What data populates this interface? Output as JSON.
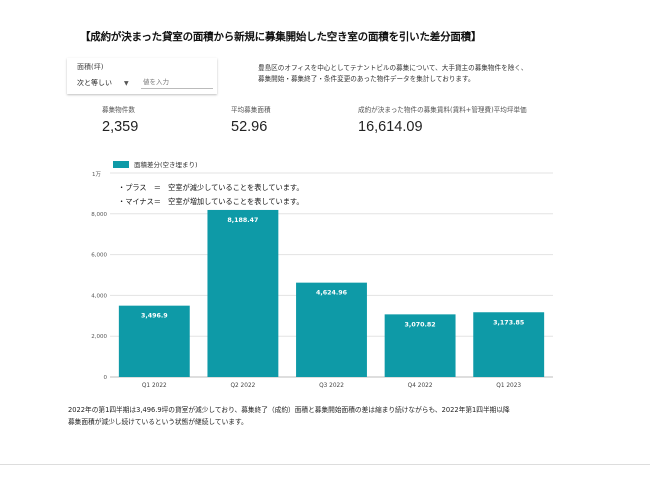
{
  "title": "【成約が決まった貸室の面積から新規に募集開始した空き室の面積を引いた差分面積】",
  "filter": {
    "label": "面積(坪)",
    "operator": "次と等しい",
    "placeholder": "値を入力"
  },
  "description": [
    "豊島区のオフィスを中心としてテナントビルの募集について、大手貸主の募集物件を除く、",
    "募集開始・募集終了・条件変更のあった物件データを集計しております。"
  ],
  "metrics": [
    {
      "label": "募集物件数",
      "value": "2,359"
    },
    {
      "label": "平均募集面積",
      "value": "52.96"
    },
    {
      "label": "成約が決まった物件の募集賃料(賃料+管理費)平均坪単価",
      "value": "16,614.09"
    }
  ],
  "notes": [
    "・プラス　＝　空室が減少していることを表しています。",
    "・マイナス＝　空室が増加していることを表しています。"
  ],
  "colors": {
    "bar": "#0e9aa7",
    "grid": "#e3e3e3"
  },
  "chart_data": {
    "type": "bar",
    "categories": [
      "Q1 2022",
      "Q2 2022",
      "Q3 2022",
      "Q4 2022",
      "Q1 2023"
    ],
    "series": [
      {
        "name": "面積差分(空き埋まり)",
        "values": [
          3496.9,
          8188.47,
          4624.96,
          3070.82,
          3173.85
        ]
      }
    ],
    "data_labels": [
      "3,496.9",
      "8,188.47",
      "4,624.96",
      "3,070.82",
      "3,173.85"
    ],
    "unit_label": "1万",
    "yticks": [
      0,
      2000,
      4000,
      6000,
      8000
    ],
    "ytick_labels": [
      "0",
      "2,000",
      "4,000",
      "6,000",
      "8,000"
    ],
    "ylim": [
      0,
      10000
    ],
    "grid": true,
    "legend_position": "top-left"
  },
  "caption": [
    "2022年の第1四半期は3,496.9坪の貸室が減少しており、募集終了（成約）面積と募集開始面積の差は縮まり続けながらも、2022年第1四半期以降",
    "募集面積が減少し続けているという状態が継続しています。"
  ]
}
